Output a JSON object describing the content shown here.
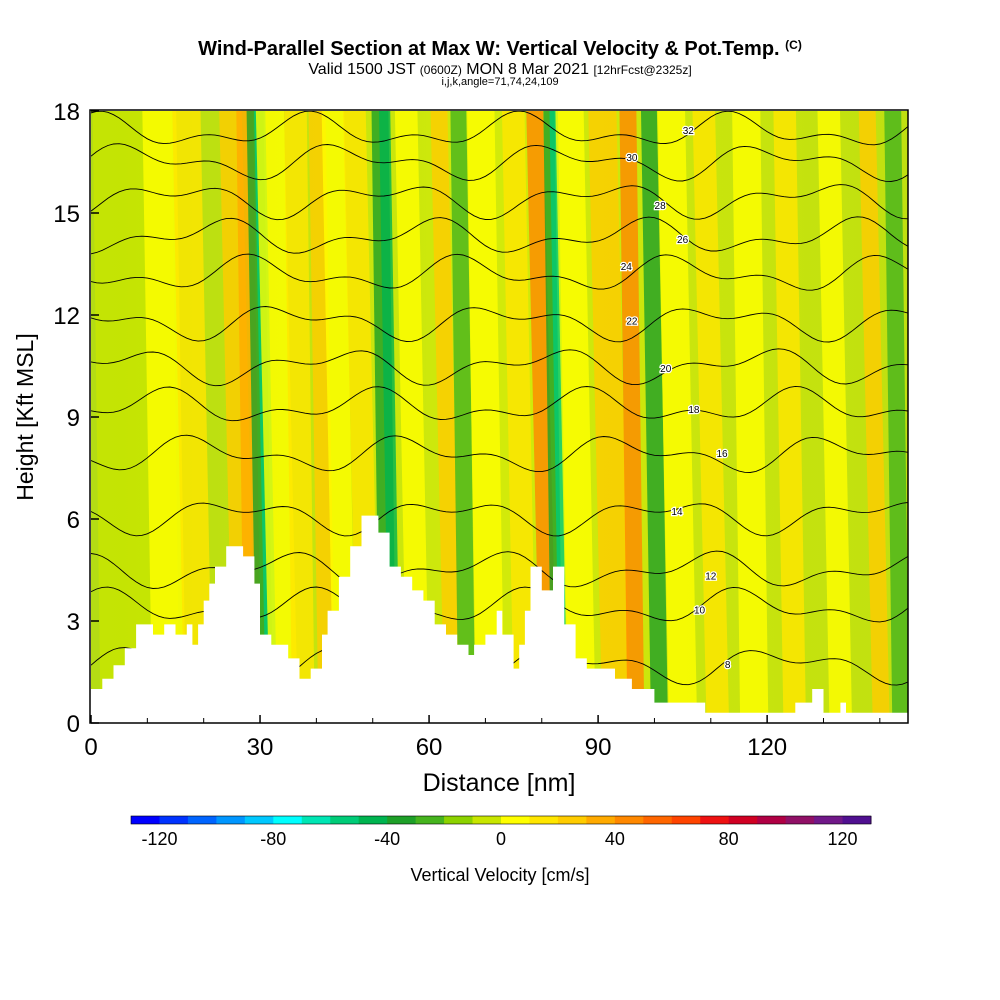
{
  "title": {
    "main": "Wind-Parallel Section at Max W: Vertical Velocity & Pot.Temp.",
    "copyright": "(C)",
    "valid": "Valid 1500 JST",
    "zulu": "(0600Z)",
    "date": "MON 8 Mar 2021",
    "fcst": "[12hrFcst@2325z]",
    "params": "i,j,k,angle=71,74,24,109"
  },
  "chart_data": {
    "type": "heatmap",
    "xlabel": "Distance [nm]",
    "ylabel": "Height [Kft MSL]",
    "xlim": [
      0,
      145
    ],
    "ylim": [
      0,
      18
    ],
    "x_ticks": [
      0,
      30,
      60,
      90,
      120
    ],
    "y_ticks": [
      0,
      3,
      6,
      9,
      12,
      15,
      18
    ],
    "colorbar": {
      "label": "Vertical Velocity [cm/s]",
      "range": [
        -130,
        130
      ],
      "step": 10,
      "ticks": [
        -120,
        -80,
        -40,
        0,
        40,
        80,
        120
      ],
      "colors": [
        "#0000ff",
        "#0032ff",
        "#0064ff",
        "#0096ff",
        "#00c8ff",
        "#00ffff",
        "#00e6b4",
        "#00cc78",
        "#00b450",
        "#1ea028",
        "#46b41e",
        "#8cd200",
        "#c8e600",
        "#ffff00",
        "#ffe600",
        "#ffcc00",
        "#ffaa00",
        "#ff8800",
        "#ff6600",
        "#ff4400",
        "#ee1111",
        "#d00022",
        "#b00044",
        "#901066",
        "#701888",
        "#501090"
      ]
    },
    "terrain_kft": [
      [
        0,
        1
      ],
      [
        2,
        1
      ],
      [
        2,
        1.3
      ],
      [
        4,
        1.3
      ],
      [
        4,
        1.7
      ],
      [
        6,
        1.7
      ],
      [
        6,
        2.2
      ],
      [
        8,
        2.2
      ],
      [
        8,
        2.9
      ],
      [
        11,
        2.9
      ],
      [
        11,
        2.6
      ],
      [
        13,
        2.6
      ],
      [
        13,
        2.9
      ],
      [
        15,
        2.9
      ],
      [
        15,
        2.6
      ],
      [
        17,
        2.6
      ],
      [
        17,
        2.9
      ],
      [
        18,
        2.9
      ],
      [
        18,
        2.3
      ],
      [
        19,
        2.3
      ],
      [
        19,
        2.9
      ],
      [
        20,
        2.9
      ],
      [
        20,
        3.6
      ],
      [
        21,
        3.6
      ],
      [
        21,
        4.1
      ],
      [
        22,
        4.1
      ],
      [
        22,
        4.6
      ],
      [
        24,
        4.6
      ],
      [
        24,
        5.2
      ],
      [
        27,
        5.2
      ],
      [
        27,
        4.9
      ],
      [
        29,
        4.9
      ],
      [
        29,
        4.1
      ],
      [
        30,
        4.1
      ],
      [
        30,
        2.6
      ],
      [
        32,
        2.6
      ],
      [
        32,
        2.3
      ],
      [
        35,
        2.3
      ],
      [
        35,
        1.9
      ],
      [
        37,
        1.9
      ],
      [
        37,
        1.3
      ],
      [
        39,
        1.3
      ],
      [
        39,
        1.6
      ],
      [
        41,
        1.6
      ],
      [
        41,
        2.6
      ],
      [
        42,
        2.6
      ],
      [
        42,
        3.3
      ],
      [
        44,
        3.3
      ],
      [
        44,
        4.3
      ],
      [
        46,
        4.3
      ],
      [
        46,
        5.2
      ],
      [
        48,
        5.2
      ],
      [
        48,
        6.1
      ],
      [
        51,
        6.1
      ],
      [
        51,
        5.6
      ],
      [
        53,
        5.6
      ],
      [
        53,
        4.6
      ],
      [
        55,
        4.6
      ],
      [
        55,
        4.3
      ],
      [
        57,
        4.3
      ],
      [
        57,
        3.9
      ],
      [
        59,
        3.9
      ],
      [
        59,
        3.6
      ],
      [
        61,
        3.6
      ],
      [
        61,
        2.9
      ],
      [
        63,
        2.9
      ],
      [
        63,
        2.6
      ],
      [
        65,
        2.6
      ],
      [
        65,
        2.3
      ],
      [
        67,
        2.3
      ],
      [
        67,
        2.0
      ],
      [
        68,
        2.0
      ],
      [
        68,
        2.3
      ],
      [
        70,
        2.3
      ],
      [
        70,
        2.6
      ],
      [
        72,
        2.6
      ],
      [
        72,
        3.3
      ],
      [
        73,
        3.3
      ],
      [
        73,
        2.6
      ],
      [
        75,
        2.6
      ],
      [
        75,
        1.6
      ],
      [
        76,
        1.6
      ],
      [
        76,
        2.3
      ],
      [
        77,
        2.3
      ],
      [
        77,
        3.3
      ],
      [
        78,
        3.3
      ],
      [
        78,
        4.6
      ],
      [
        80,
        4.6
      ],
      [
        80,
        3.9
      ],
      [
        82,
        3.9
      ],
      [
        82,
        4.6
      ],
      [
        84,
        4.6
      ],
      [
        84,
        2.9
      ],
      [
        86,
        2.9
      ],
      [
        86,
        1.9
      ],
      [
        88,
        1.9
      ],
      [
        88,
        1.6
      ],
      [
        93,
        1.6
      ],
      [
        93,
        1.3
      ],
      [
        96,
        1.3
      ],
      [
        96,
        1.0
      ],
      [
        100,
        1.0
      ],
      [
        100,
        0.6
      ],
      [
        109,
        0.6
      ],
      [
        109,
        0.3
      ],
      [
        125,
        0.3
      ],
      [
        125,
        0.6
      ],
      [
        128,
        0.6
      ],
      [
        128,
        1.0
      ],
      [
        130,
        1.0
      ],
      [
        130,
        0.3
      ],
      [
        133,
        0.3
      ],
      [
        133,
        0.6
      ],
      [
        134,
        0.6
      ],
      [
        134,
        0.3
      ],
      [
        145,
        0.3
      ]
    ],
    "contours_theta": [
      {
        "v": 8,
        "lx": 113,
        "ly": 1.7
      },
      {
        "v": 10,
        "lx": 108,
        "ly": 3.3
      },
      {
        "v": 12,
        "lx": 110,
        "ly": 4.3
      },
      {
        "v": 14,
        "lx": 104,
        "ly": 6.2
      },
      {
        "v": 16,
        "lx": 112,
        "ly": 7.9
      },
      {
        "v": 18,
        "lx": 107,
        "ly": 9.2
      },
      {
        "v": 20,
        "lx": 102,
        "ly": 10.4
      },
      {
        "v": 22,
        "lx": 96,
        "ly": 11.8
      },
      {
        "v": 24,
        "lx": 95,
        "ly": 13.4
      },
      {
        "v": 26,
        "lx": 105,
        "ly": 14.2
      },
      {
        "v": 28,
        "lx": 101,
        "ly": 15.2
      },
      {
        "v": 30,
        "lx": 96,
        "ly": 16.6
      },
      {
        "v": 32,
        "lx": 106,
        "ly": 17.4
      }
    ]
  }
}
